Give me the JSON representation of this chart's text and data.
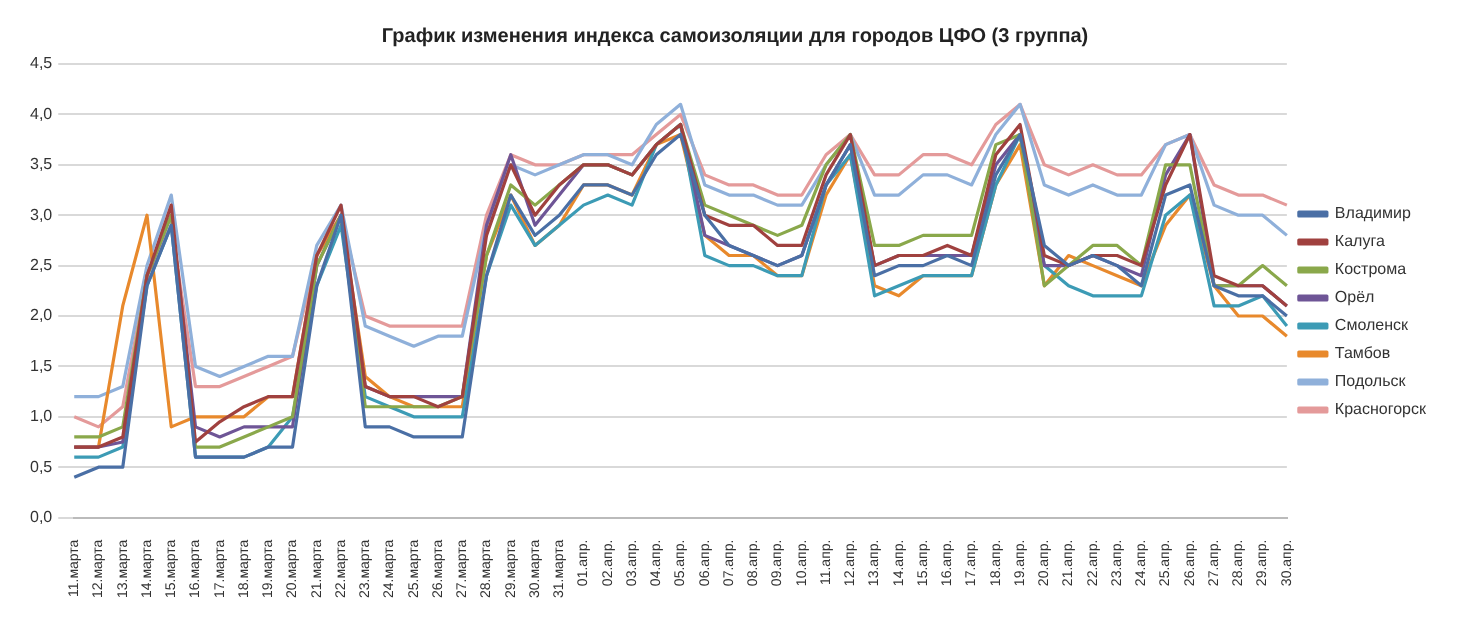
{
  "chart_data": {
    "type": "line",
    "title": "График изменения индекса самоизоляции для городов ЦФО (3 группа)",
    "categories": [
      "11.марта",
      "12.марта",
      "13.марта",
      "14.марта",
      "15.марта",
      "16.марта",
      "17.марта",
      "18.марта",
      "19.марта",
      "20.марта",
      "21.марта",
      "22.марта",
      "23.марта",
      "24.марта",
      "25.марта",
      "26.марта",
      "27.марта",
      "28.марта",
      "29.марта",
      "30.марта",
      "31.марта",
      "01.апр.",
      "02.апр.",
      "03.апр.",
      "04.апр.",
      "05.апр.",
      "06.апр.",
      "07.апр.",
      "08.апр.",
      "09.апр.",
      "10.апр.",
      "11.апр.",
      "12.апр.",
      "13.апр.",
      "14.апр.",
      "15.апр.",
      "16.апр.",
      "17.апр.",
      "18.апр.",
      "19.апр.",
      "20.апр.",
      "21.апр.",
      "22.апр.",
      "23.апр.",
      "24.апр.",
      "25.апр.",
      "26.апр.",
      "27.апр.",
      "28.апр.",
      "29.апр.",
      "30.апр."
    ],
    "series": [
      {
        "name": "Владимир",
        "color": "#4a6fa5",
        "values": [
          0.4,
          0.5,
          0.5,
          2.3,
          2.9,
          0.6,
          0.6,
          0.6,
          0.7,
          0.7,
          2.3,
          3.0,
          0.9,
          0.9,
          0.8,
          0.8,
          0.8,
          2.4,
          3.2,
          2.8,
          3.0,
          3.3,
          3.3,
          3.2,
          3.6,
          3.8,
          3.0,
          2.7,
          2.6,
          2.5,
          2.6,
          3.3,
          3.7,
          2.4,
          2.5,
          2.5,
          2.6,
          2.5,
          3.4,
          3.8,
          2.7,
          2.5,
          2.6,
          2.5,
          2.3,
          3.2,
          3.3,
          2.3,
          2.2,
          2.2,
          2.0
        ]
      },
      {
        "name": "Калуга",
        "color": "#a0413f",
        "values": [
          0.7,
          0.7,
          0.8,
          2.4,
          3.1,
          0.75,
          0.95,
          1.1,
          1.2,
          1.2,
          2.6,
          3.1,
          1.3,
          1.2,
          1.2,
          1.1,
          1.2,
          2.8,
          3.5,
          3.0,
          3.3,
          3.5,
          3.5,
          3.4,
          3.7,
          3.9,
          3.0,
          2.9,
          2.9,
          2.7,
          2.7,
          3.4,
          3.8,
          2.5,
          2.6,
          2.6,
          2.7,
          2.6,
          3.6,
          3.9,
          2.6,
          2.5,
          2.6,
          2.6,
          2.5,
          3.3,
          3.8,
          2.4,
          2.3,
          2.3,
          2.1
        ]
      },
      {
        "name": "Кострома",
        "color": "#8aa84b",
        "values": [
          0.8,
          0.8,
          0.9,
          2.4,
          3.0,
          0.7,
          0.7,
          0.8,
          0.9,
          1.0,
          2.5,
          3.0,
          1.1,
          1.1,
          1.1,
          1.1,
          1.2,
          2.6,
          3.3,
          3.1,
          3.3,
          3.5,
          3.5,
          3.4,
          3.7,
          3.9,
          3.1,
          3.0,
          2.9,
          2.8,
          2.9,
          3.5,
          3.8,
          2.7,
          2.7,
          2.8,
          2.8,
          2.8,
          3.7,
          3.8,
          2.3,
          2.5,
          2.7,
          2.7,
          2.5,
          3.5,
          3.5,
          2.3,
          2.3,
          2.5,
          2.3
        ]
      },
      {
        "name": "Орёл",
        "color": "#6e5596",
        "values": [
          0.7,
          0.7,
          0.75,
          2.4,
          3.0,
          0.9,
          0.8,
          0.9,
          0.9,
          0.9,
          2.5,
          3.0,
          1.3,
          1.2,
          1.2,
          1.2,
          1.2,
          2.9,
          3.6,
          2.9,
          3.2,
          3.5,
          3.5,
          3.4,
          3.7,
          3.9,
          2.8,
          2.7,
          2.6,
          2.5,
          2.6,
          3.3,
          3.7,
          2.5,
          2.6,
          2.6,
          2.6,
          2.6,
          3.5,
          3.8,
          2.5,
          2.5,
          2.6,
          2.5,
          2.4,
          3.4,
          3.8,
          2.3,
          2.3,
          2.3,
          2.1
        ]
      },
      {
        "name": "Смоленск",
        "color": "#3c9bb5",
        "values": [
          0.6,
          0.6,
          0.7,
          2.3,
          2.9,
          0.6,
          0.6,
          0.6,
          0.7,
          1.0,
          2.3,
          2.9,
          1.2,
          1.1,
          1.0,
          1.0,
          1.0,
          2.4,
          3.1,
          2.7,
          2.9,
          3.1,
          3.2,
          3.1,
          3.7,
          3.9,
          2.6,
          2.5,
          2.5,
          2.4,
          2.4,
          3.3,
          3.6,
          2.2,
          2.3,
          2.4,
          2.4,
          2.4,
          3.3,
          3.8,
          2.5,
          2.3,
          2.2,
          2.2,
          2.2,
          3.0,
          3.2,
          2.1,
          2.1,
          2.2,
          1.9
        ]
      },
      {
        "name": "Тамбов",
        "color": "#e8892c",
        "values": [
          0.7,
          0.7,
          2.1,
          3.0,
          0.9,
          1.0,
          1.0,
          1.0,
          1.2,
          1.2,
          2.6,
          3.0,
          1.4,
          1.2,
          1.1,
          1.1,
          1.1,
          2.6,
          3.2,
          2.7,
          2.9,
          3.3,
          3.3,
          3.2,
          3.7,
          3.8,
          2.8,
          2.6,
          2.6,
          2.4,
          2.4,
          3.2,
          3.6,
          2.3,
          2.2,
          2.4,
          2.4,
          2.4,
          3.3,
          3.7,
          2.3,
          2.6,
          2.5,
          2.4,
          2.3,
          2.9,
          3.2,
          2.3,
          2.0,
          2.0,
          1.8
        ]
      },
      {
        "name": "Подольск",
        "color": "#8fb0da",
        "values": [
          1.2,
          1.2,
          1.3,
          2.5,
          3.2,
          1.5,
          1.4,
          1.5,
          1.6,
          1.6,
          2.7,
          3.1,
          1.9,
          1.8,
          1.7,
          1.8,
          1.8,
          2.9,
          3.5,
          3.4,
          3.5,
          3.6,
          3.6,
          3.5,
          3.9,
          4.1,
          3.3,
          3.2,
          3.2,
          3.1,
          3.1,
          3.5,
          3.8,
          3.2,
          3.2,
          3.4,
          3.4,
          3.3,
          3.8,
          4.1,
          3.3,
          3.2,
          3.3,
          3.2,
          3.2,
          3.7,
          3.8,
          3.1,
          3.0,
          3.0,
          2.8
        ]
      },
      {
        "name": "Красногорск",
        "color": "#e49a9a",
        "values": [
          1.0,
          0.9,
          1.1,
          2.4,
          2.9,
          1.3,
          1.3,
          1.4,
          1.5,
          1.6,
          2.6,
          3.0,
          2.0,
          1.9,
          1.9,
          1.9,
          1.9,
          3.0,
          3.6,
          3.5,
          3.5,
          3.6,
          3.6,
          3.6,
          3.8,
          4.0,
          3.4,
          3.3,
          3.3,
          3.2,
          3.2,
          3.6,
          3.8,
          3.4,
          3.4,
          3.6,
          3.6,
          3.5,
          3.9,
          4.1,
          3.5,
          3.4,
          3.5,
          3.4,
          3.4,
          3.7,
          3.8,
          3.3,
          3.2,
          3.2,
          3.1
        ]
      }
    ],
    "ylim": [
      0,
      4.5
    ],
    "yticks": [
      {
        "value": 0,
        "label": "0,0"
      },
      {
        "value": 0.5,
        "label": "0,5"
      },
      {
        "value": 1,
        "label": "1,0"
      },
      {
        "value": 1.5,
        "label": "1,5"
      },
      {
        "value": 2,
        "label": "2,0"
      },
      {
        "value": 2.5,
        "label": "2,5"
      },
      {
        "value": 3,
        "label": "3,0"
      },
      {
        "value": 3.5,
        "label": "3,5"
      },
      {
        "value": 4,
        "label": "4,0"
      },
      {
        "value": 4.5,
        "label": "4,5"
      }
    ],
    "grid": "y",
    "legend": "right",
    "marker": "none",
    "line_style": "solid"
  }
}
